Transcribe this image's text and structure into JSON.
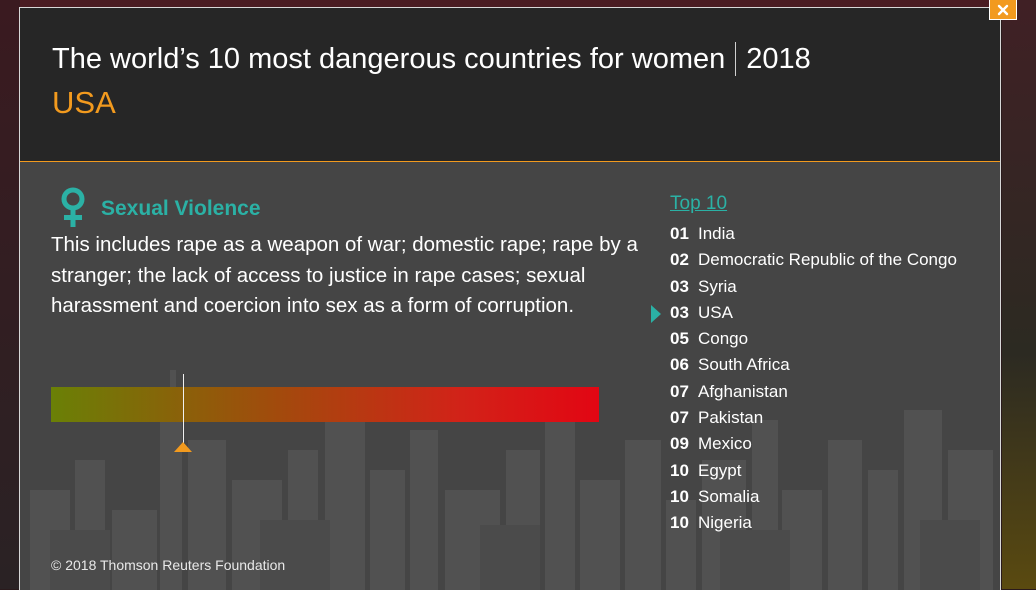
{
  "header": {
    "title": "The world’s 10 most dangerous countries for women",
    "year": "2018",
    "country": "USA"
  },
  "category": {
    "icon": "female-symbol-icon",
    "title": "Sexual Violence",
    "description": "This includes rape as a weapon of war; domestic rape; rape by a stranger; the lack of access to justice in rape cases; sexual harassment and coercion into sex as a form of corruption."
  },
  "scale": {
    "marker_fraction": 0.24,
    "colors": [
      "#6a8006",
      "#a04c0c",
      "#d22218",
      "#e20613"
    ]
  },
  "top10": {
    "heading": "Top 10",
    "items": [
      {
        "rank": "01",
        "country": "India"
      },
      {
        "rank": "02",
        "country": "Democratic Republic of the Congo"
      },
      {
        "rank": "03",
        "country": "Syria"
      },
      {
        "rank": "03",
        "country": "USA",
        "active": true
      },
      {
        "rank": "05",
        "country": "Congo"
      },
      {
        "rank": "06",
        "country": "South Africa"
      },
      {
        "rank": "07",
        "country": "Afghanistan"
      },
      {
        "rank": "07",
        "country": "Pakistan"
      },
      {
        "rank": "09",
        "country": "Mexico"
      },
      {
        "rank": "10",
        "country": "Egypt"
      },
      {
        "rank": "10",
        "country": "Somalia"
      },
      {
        "rank": "10",
        "country": "Nigeria"
      }
    ]
  },
  "footer": {
    "copyright": "© 2018 Thomson Reuters Foundation"
  },
  "close_button": {
    "icon": "close-icon",
    "glyph": "×"
  },
  "colors": {
    "accent": "#f29a1e",
    "teal": "#2bb1a5",
    "header_bg": "#262626",
    "body_bg": "#454545"
  }
}
